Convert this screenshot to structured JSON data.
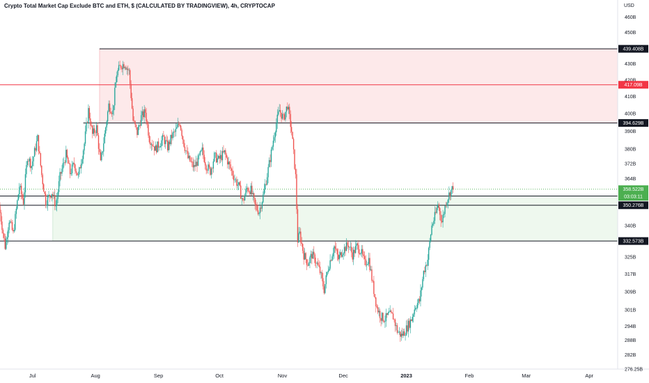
{
  "header": {
    "title": "Crypto Total Market Cap Exclude BTC and ETH, $ (CALCULATED BY TRADINGVIEW), 4h, CRYPTOCAP",
    "currency": "USD"
  },
  "colors": {
    "up": "#26a69a",
    "down": "#ef5350",
    "resistance_zone": "#fde9ea",
    "support_zone": "#eef8ee",
    "hline": "#131722",
    "red_line": "#f23645",
    "current_tag": "#4caf50"
  },
  "chart_data": {
    "type": "candlestick",
    "title": "Crypto Total Market Cap Exclude BTC and ETH, $ (CALCULATED BY TRADINGVIEW), 4h, CRYPTOCAP",
    "unit": "USD",
    "y_scale": "log",
    "ylim": [
      276.25,
      465
    ],
    "y_ticks": [
      {
        "v": 460,
        "label": "460B"
      },
      {
        "v": 450,
        "label": "450B"
      },
      {
        "v": 430,
        "label": "430B"
      },
      {
        "v": 420,
        "label": "420B"
      },
      {
        "v": 410,
        "label": "410B"
      },
      {
        "v": 400,
        "label": "400B"
      },
      {
        "v": 390,
        "label": "390B"
      },
      {
        "v": 380,
        "label": "380B"
      },
      {
        "v": 372,
        "label": "372B"
      },
      {
        "v": 364,
        "label": "364B"
      },
      {
        "v": 340,
        "label": "340B"
      },
      {
        "v": 325,
        "label": "325B"
      },
      {
        "v": 317,
        "label": "317B"
      },
      {
        "v": 309,
        "label": "309B"
      },
      {
        "v": 301,
        "label": "301B"
      },
      {
        "v": 294,
        "label": "294B"
      },
      {
        "v": 288,
        "label": "288B"
      },
      {
        "v": 282,
        "label": "282B"
      },
      {
        "v": 276.25,
        "label": "276.25B"
      }
    ],
    "x_range": [
      "2022-06-15",
      "2023-04-15"
    ],
    "x_ticks": [
      {
        "date": "2022-07-01",
        "label": "Jul",
        "bold": false
      },
      {
        "date": "2022-08-01",
        "label": "Aug",
        "bold": false
      },
      {
        "date": "2022-09-01",
        "label": "Sep",
        "bold": false
      },
      {
        "date": "2022-10-01",
        "label": "Oct",
        "bold": false
      },
      {
        "date": "2022-11-01",
        "label": "Nov",
        "bold": false
      },
      {
        "date": "2022-12-01",
        "label": "Dec",
        "bold": false
      },
      {
        "date": "2023-01-01",
        "label": "2023",
        "bold": true
      },
      {
        "date": "2023-02-01",
        "label": "Feb",
        "bold": false
      },
      {
        "date": "2023-03-01",
        "label": "Mar",
        "bold": false
      },
      {
        "date": "2023-04-01",
        "label": "Apr",
        "bold": false
      }
    ],
    "zones": [
      {
        "name": "resistance",
        "from_date": "2022-08-03",
        "to": "end",
        "low": 394.629,
        "high": 439.408
      },
      {
        "name": "support",
        "from_date": "2022-07-11",
        "to": "end",
        "low": 332.573,
        "high": 354.988
      }
    ],
    "levels": [
      {
        "value": 439.408,
        "label": "439.408B",
        "from_date": "2022-08-03",
        "style": "black"
      },
      {
        "value": 417.09,
        "label": "417.09B",
        "from_date": "2022-06-15",
        "style": "red"
      },
      {
        "value": 394.629,
        "label": "394.629B",
        "from_date": "2022-07-26",
        "style": "black"
      },
      {
        "value": 354.988,
        "label": "354.988B",
        "from_date": "2022-06-15",
        "style": "black"
      },
      {
        "value": 350.276,
        "label": "350.276B",
        "from_date": "2022-06-15",
        "style": "black"
      },
      {
        "value": 332.573,
        "label": "332.573B",
        "from_date": "2022-06-15",
        "style": "black"
      }
    ],
    "current": {
      "value": 358.522,
      "label": "358.522B",
      "countdown": "03:03:11"
    },
    "path": [
      [
        "2022-06-15",
        350
      ],
      [
        "2022-06-18",
        330
      ],
      [
        "2022-06-20",
        343
      ],
      [
        "2022-06-22",
        336
      ],
      [
        "2022-06-25",
        360
      ],
      [
        "2022-06-27",
        352
      ],
      [
        "2022-06-29",
        376
      ],
      [
        "2022-07-01",
        371
      ],
      [
        "2022-07-04",
        386
      ],
      [
        "2022-07-06",
        366
      ],
      [
        "2022-07-08",
        352
      ],
      [
        "2022-07-11",
        357
      ],
      [
        "2022-07-13",
        350
      ],
      [
        "2022-07-15",
        365
      ],
      [
        "2022-07-18",
        377
      ],
      [
        "2022-07-20",
        367
      ],
      [
        "2022-07-22",
        372
      ],
      [
        "2022-07-24",
        365
      ],
      [
        "2022-07-27",
        383
      ],
      [
        "2022-07-29",
        402
      ],
      [
        "2022-07-31",
        388
      ],
      [
        "2022-08-02",
        392
      ],
      [
        "2022-08-04",
        372
      ],
      [
        "2022-08-06",
        388
      ],
      [
        "2022-08-08",
        405
      ],
      [
        "2022-08-10",
        401
      ],
      [
        "2022-08-12",
        424
      ],
      [
        "2022-08-14",
        429
      ],
      [
        "2022-08-16",
        430
      ],
      [
        "2022-08-18",
        425
      ],
      [
        "2022-08-20",
        396
      ],
      [
        "2022-08-22",
        389
      ],
      [
        "2022-08-24",
        398
      ],
      [
        "2022-08-26",
        401
      ],
      [
        "2022-08-28",
        386
      ],
      [
        "2022-08-31",
        380
      ],
      [
        "2022-09-02",
        383
      ],
      [
        "2022-09-04",
        386
      ],
      [
        "2022-09-06",
        381
      ],
      [
        "2022-09-08",
        387
      ],
      [
        "2022-09-10",
        390
      ],
      [
        "2022-09-12",
        395
      ],
      [
        "2022-09-14",
        383
      ],
      [
        "2022-09-16",
        375
      ],
      [
        "2022-09-19",
        370
      ],
      [
        "2022-09-21",
        374
      ],
      [
        "2022-09-23",
        379
      ],
      [
        "2022-09-25",
        371
      ],
      [
        "2022-09-27",
        368
      ],
      [
        "2022-09-29",
        376
      ],
      [
        "2022-10-01",
        374
      ],
      [
        "2022-10-04",
        378
      ],
      [
        "2022-10-06",
        372
      ],
      [
        "2022-10-09",
        364
      ],
      [
        "2022-10-11",
        360
      ],
      [
        "2022-10-13",
        352
      ],
      [
        "2022-10-15",
        359
      ],
      [
        "2022-10-17",
        358
      ],
      [
        "2022-10-19",
        350
      ],
      [
        "2022-10-21",
        347
      ],
      [
        "2022-10-23",
        355
      ],
      [
        "2022-10-25",
        366
      ],
      [
        "2022-10-27",
        378
      ],
      [
        "2022-10-29",
        392
      ],
      [
        "2022-10-31",
        402
      ],
      [
        "2022-11-02",
        397
      ],
      [
        "2022-11-04",
        405
      ],
      [
        "2022-11-06",
        390
      ],
      [
        "2022-11-08",
        365
      ],
      [
        "2022-11-09",
        333
      ],
      [
        "2022-11-10",
        336
      ],
      [
        "2022-11-12",
        326
      ],
      [
        "2022-11-14",
        322
      ],
      [
        "2022-11-16",
        326
      ],
      [
        "2022-11-18",
        323
      ],
      [
        "2022-11-20",
        318
      ],
      [
        "2022-11-22",
        310
      ],
      [
        "2022-11-24",
        320
      ],
      [
        "2022-11-27",
        330
      ],
      [
        "2022-11-29",
        324
      ],
      [
        "2022-12-01",
        328
      ],
      [
        "2022-12-04",
        331
      ],
      [
        "2022-12-06",
        326
      ],
      [
        "2022-12-08",
        330
      ],
      [
        "2022-12-10",
        328
      ],
      [
        "2022-12-12",
        322
      ],
      [
        "2022-12-14",
        324
      ],
      [
        "2022-12-16",
        312
      ],
      [
        "2022-12-18",
        302
      ],
      [
        "2022-12-20",
        298
      ],
      [
        "2022-12-22",
        297
      ],
      [
        "2022-12-24",
        299
      ],
      [
        "2022-12-26",
        298
      ],
      [
        "2022-12-28",
        292
      ],
      [
        "2022-12-30",
        290
      ],
      [
        "2023-01-01",
        292
      ],
      [
        "2023-01-04",
        297
      ],
      [
        "2023-01-06",
        303
      ],
      [
        "2023-01-08",
        305
      ],
      [
        "2023-01-10",
        318
      ],
      [
        "2023-01-12",
        324
      ],
      [
        "2023-01-14",
        340
      ],
      [
        "2023-01-16",
        346
      ],
      [
        "2023-01-17",
        351
      ],
      [
        "2023-01-19",
        342
      ],
      [
        "2023-01-21",
        352
      ],
      [
        "2023-01-23",
        357
      ],
      [
        "2023-01-24",
        358.522
      ]
    ]
  }
}
